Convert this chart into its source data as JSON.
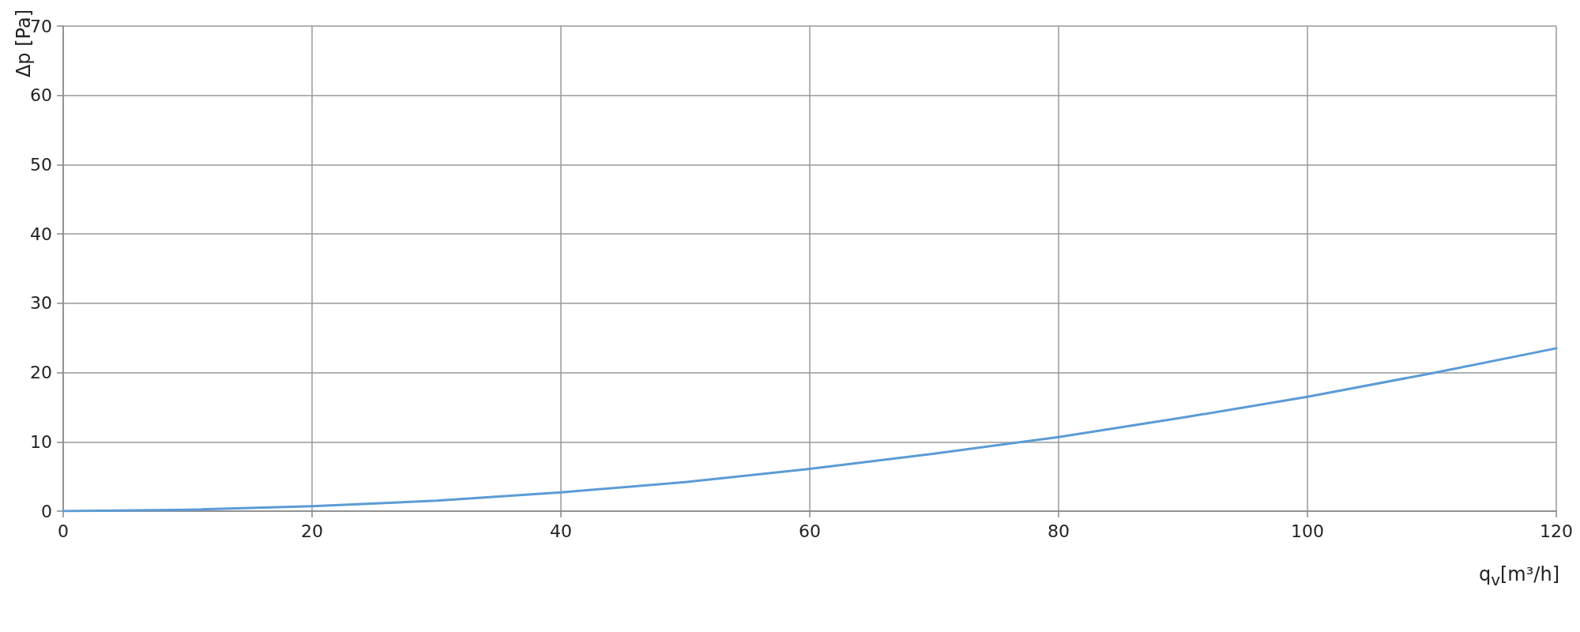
{
  "chart_data": {
    "type": "line",
    "xlabel": "q$_{v}$[m³/h]",
    "ylabel": "Δp [Pa]",
    "x": [
      0,
      10,
      20,
      30,
      40,
      50,
      60,
      70,
      80,
      90,
      100,
      110,
      120
    ],
    "series": [
      {
        "color": "#5b9bd5",
        "values": [
          0,
          0.2,
          0.7,
          1.5,
          2.7,
          4.2,
          6.1,
          8.3,
          10.7,
          13.5,
          16.5,
          19.9,
          23.5
        ]
      }
    ],
    "xlim": [
      0,
      120
    ],
    "xticks": [
      0,
      20,
      40,
      60,
      80,
      100,
      120
    ],
    "ylim": [
      0,
      70
    ],
    "yticks": [
      0,
      10,
      20,
      30,
      40,
      50,
      60,
      70
    ],
    "grid": true,
    "marker": "none",
    "line_style": "solid"
  }
}
